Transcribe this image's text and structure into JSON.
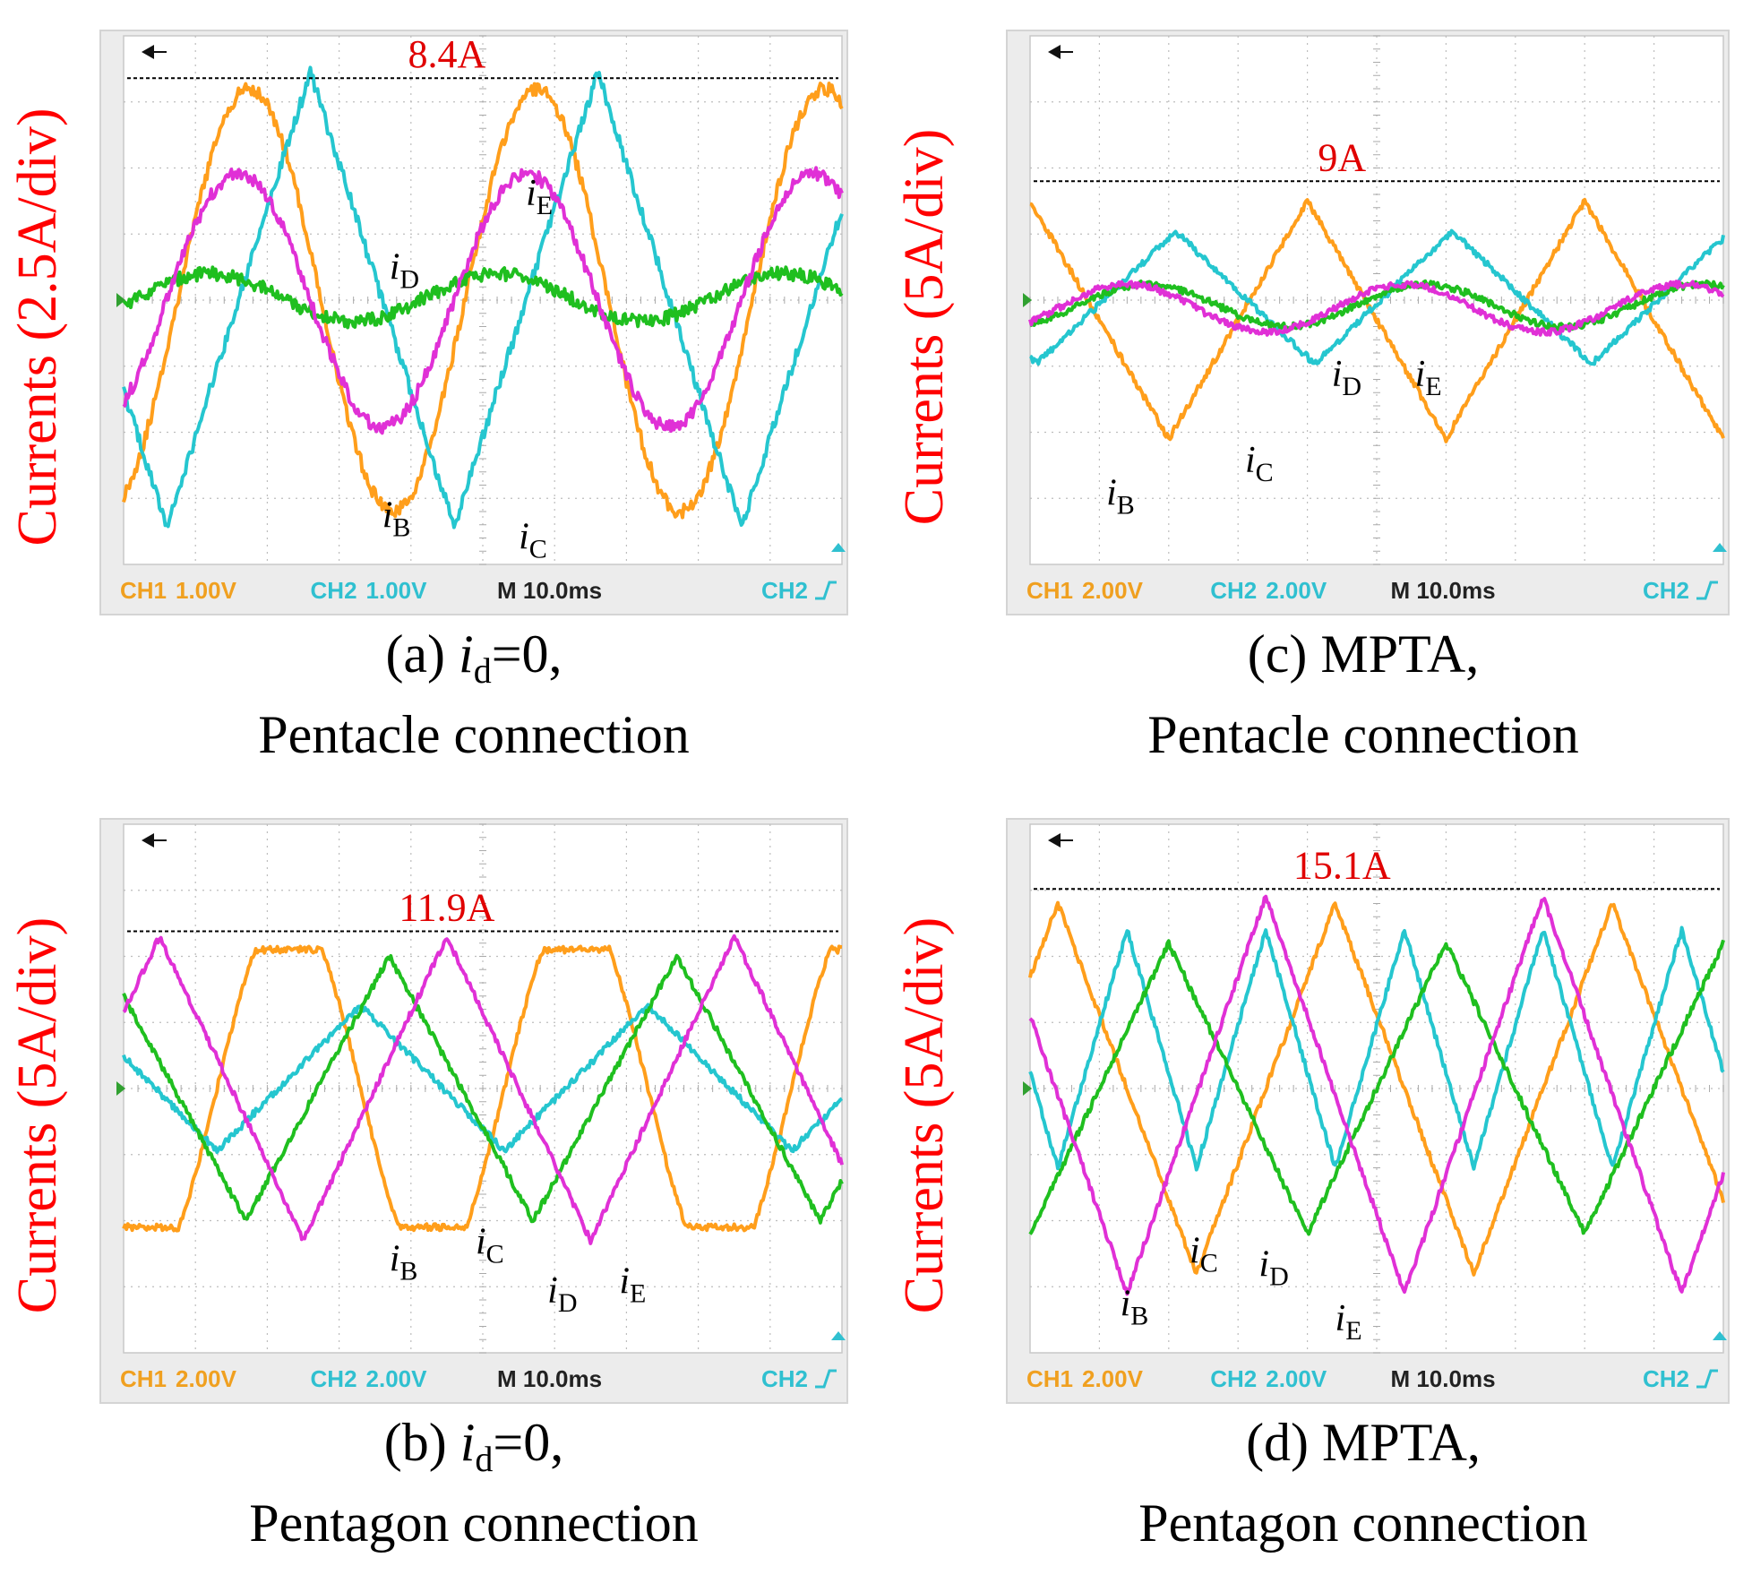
{
  "colors": {
    "iB": "#ff9e1b",
    "iC": "#25c6cf",
    "iD": "#1fbf1f",
    "iE": "#e030d6",
    "ylabel": "#ff0000",
    "peak": "#e00000",
    "scope_text": "#f0a020",
    "scope_ch2": "#30c0d0",
    "grid": "#bdbdbd",
    "screen_bg": "#ffffff",
    "frame": "#d4d4d4"
  },
  "chart_data": [
    {
      "type": "line",
      "id": "a",
      "title": "(a) i_d=0,",
      "subtitle": "Pentacle connection",
      "title_parts": {
        "prefix": "(a) ",
        "var": "i",
        "sub": "d",
        "suffix": "=0,"
      },
      "ylabel": "Currents (2.5A/div)",
      "scale_a_per_div": 2.5,
      "peak_label": "8.4A",
      "peak_value_a": 8.4,
      "x_range_ms": [
        0,
        100
      ],
      "y_range_div": [
        -4,
        4
      ],
      "grid": true,
      "scope_readout": {
        "ch1": "CH1",
        "ch1_value": "1.00V",
        "ch2": "CH2",
        "ch2_value": "1.00V",
        "timebase": "M 10.0ms",
        "trigger": "CH2"
      },
      "series": [
        {
          "label_var": "i",
          "label_sub": "B",
          "key": "iB",
          "amplitude_a": 8.0,
          "period_ms": 40,
          "phase_ms": 7.5,
          "offset_a": 0,
          "shape": "sine"
        },
        {
          "label_var": "i",
          "label_sub": "C",
          "key": "iC",
          "amplitude_a": 8.6,
          "period_ms": 40,
          "phase_ms": 16,
          "offset_a": 0,
          "shape": "triangle"
        },
        {
          "label_var": "i",
          "label_sub": "D",
          "key": "iD",
          "amplitude_a": 0.9,
          "period_ms": 40,
          "phase_ms": 2,
          "offset_a": 0.1,
          "shape": "sine"
        },
        {
          "label_var": "i",
          "label_sub": "E",
          "key": "iE",
          "amplitude_a": 4.8,
          "period_ms": 40,
          "phase_ms": 6,
          "offset_a": 0,
          "shape": "sine"
        }
      ],
      "annotations": [
        {
          "series": "iE",
          "t_ms": 56,
          "v_a": 3.6
        },
        {
          "series": "iD",
          "t_ms": 37,
          "v_a": 0.8
        },
        {
          "series": "iB",
          "t_ms": 36,
          "v_a": -8.6
        },
        {
          "series": "iC",
          "t_ms": 55,
          "v_a": -9.4
        }
      ]
    },
    {
      "type": "line",
      "id": "c",
      "title": "(c) MPTA,",
      "subtitle": "Pentacle connection",
      "title_parts": {
        "prefix": "(c) MPTA,",
        "var": "",
        "sub": "",
        "suffix": ""
      },
      "ylabel": "Currents (5A/div)",
      "scale_a_per_div": 5,
      "peak_label": "9A",
      "peak_value_a": 9.0,
      "x_range_ms": [
        0,
        100
      ],
      "y_range_div": [
        -4,
        4
      ],
      "grid": true,
      "scope_readout": {
        "ch1": "CH1",
        "ch1_value": "2.00V",
        "ch2": "CH2",
        "ch2_value": "2.00V",
        "timebase": "M 10.0ms",
        "trigger": "CH2"
      },
      "series": [
        {
          "label_var": "i",
          "label_sub": "B",
          "key": "iB",
          "amplitude_a": 9.0,
          "period_ms": 40,
          "phase_ms": 30,
          "offset_a": -1.5,
          "shape": "triangle"
        },
        {
          "label_var": "i",
          "label_sub": "C",
          "key": "iC",
          "amplitude_a": 5.0,
          "period_ms": 40,
          "phase_ms": 11,
          "offset_a": 0.2,
          "shape": "triangle"
        },
        {
          "label_var": "i",
          "label_sub": "D",
          "key": "iD",
          "amplitude_a": 1.6,
          "period_ms": 40,
          "phase_ms": 7,
          "offset_a": -0.4,
          "shape": "sine"
        },
        {
          "label_var": "i",
          "label_sub": "E",
          "key": "iE",
          "amplitude_a": 1.8,
          "period_ms": 40,
          "phase_ms": 4,
          "offset_a": -0.6,
          "shape": "sine"
        }
      ],
      "annotations": [
        {
          "series": "iB",
          "t_ms": 11,
          "v_a": -15.5
        },
        {
          "series": "iC",
          "t_ms": 31,
          "v_a": -13.0
        },
        {
          "series": "iD",
          "t_ms": 43.5,
          "v_a": -6.5
        },
        {
          "series": "iE",
          "t_ms": 55.5,
          "v_a": -6.5
        }
      ]
    },
    {
      "type": "line",
      "id": "b",
      "title": "(b) i_d=0,",
      "subtitle": "Pentagon connection",
      "title_parts": {
        "prefix": "(b) ",
        "var": "i",
        "sub": "d",
        "suffix": "=0,"
      },
      "ylabel": "Currents (5A/div)",
      "scale_a_per_div": 5,
      "peak_label": "11.9A",
      "peak_value_a": 11.9,
      "x_range_ms": [
        0,
        100
      ],
      "y_range_div": [
        -4,
        4
      ],
      "grid": true,
      "scope_readout": {
        "ch1": "CH1",
        "ch1_value": "2.00V",
        "ch2": "CH2",
        "ch2_value": "2.00V",
        "timebase": "M 10.0ms",
        "trigger": "CH2"
      },
      "series": [
        {
          "label_var": "i",
          "label_sub": "B",
          "key": "iB",
          "amplitude_a": 10.5,
          "period_ms": 40,
          "phase_ms": 13,
          "offset_a": 0,
          "shape": "trapezoid"
        },
        {
          "label_var": "i",
          "label_sub": "C",
          "key": "iC",
          "amplitude_a": 5.5,
          "period_ms": 40,
          "phase_ms": 23,
          "offset_a": 0.8,
          "shape": "triangle"
        },
        {
          "label_var": "i",
          "label_sub": "D",
          "key": "iD",
          "amplitude_a": 10.0,
          "period_ms": 40,
          "phase_ms": 27,
          "offset_a": 0,
          "shape": "triangle"
        },
        {
          "label_var": "i",
          "label_sub": "E",
          "key": "iE",
          "amplitude_a": 11.5,
          "period_ms": 40,
          "phase_ms": 35,
          "offset_a": 0,
          "shape": "triangle"
        }
      ],
      "annotations": [
        {
          "series": "iB",
          "t_ms": 37,
          "v_a": -13.8
        },
        {
          "series": "iC",
          "t_ms": 49,
          "v_a": -12.5
        },
        {
          "series": "iD",
          "t_ms": 59,
          "v_a": -16.2
        },
        {
          "series": "iE",
          "t_ms": 69,
          "v_a": -15.5
        }
      ]
    },
    {
      "type": "line",
      "id": "d",
      "title": "(d) MPTA,",
      "subtitle": "Pentagon connection",
      "title_parts": {
        "prefix": "(d) MPTA,",
        "var": "",
        "sub": "",
        "suffix": ""
      },
      "ylabel": "Currents (5A/div)",
      "scale_a_per_div": 5,
      "peak_label": "15.1A",
      "peak_value_a": 15.1,
      "x_range_ms": [
        0,
        100
      ],
      "y_range_div": [
        -4,
        4
      ],
      "grid": true,
      "scope_readout": {
        "ch1": "CH1",
        "ch1_value": "2.00V",
        "ch2": "CH2",
        "ch2_value": "2.00V",
        "timebase": "M 10.0ms",
        "trigger": "CH2"
      },
      "series": [
        {
          "label_var": "i",
          "label_sub": "B",
          "key": "iB",
          "amplitude_a": 14.0,
          "period_ms": 40,
          "phase_ms": 34,
          "offset_a": 0,
          "shape": "triangle"
        },
        {
          "label_var": "i",
          "label_sub": "C",
          "key": "iC",
          "amplitude_a": 9.0,
          "period_ms": 20,
          "phase_ms": 9,
          "offset_a": 3.0,
          "shape": "triangle"
        },
        {
          "label_var": "i",
          "label_sub": "D",
          "key": "iD",
          "amplitude_a": 11.0,
          "period_ms": 40,
          "phase_ms": 10,
          "offset_a": 0,
          "shape": "triangle"
        },
        {
          "label_var": "i",
          "label_sub": "E",
          "key": "iE",
          "amplitude_a": 15.0,
          "period_ms": 40,
          "phase_ms": 24,
          "offset_a": -0.5,
          "shape": "triangle"
        }
      ],
      "annotations": [
        {
          "series": "iB",
          "t_ms": 13,
          "v_a": -17.2
        },
        {
          "series": "iC",
          "t_ms": 23,
          "v_a": -13.2
        },
        {
          "series": "iD",
          "t_ms": 33,
          "v_a": -14.2
        },
        {
          "series": "iE",
          "t_ms": 44,
          "v_a": -18.3
        }
      ]
    }
  ]
}
